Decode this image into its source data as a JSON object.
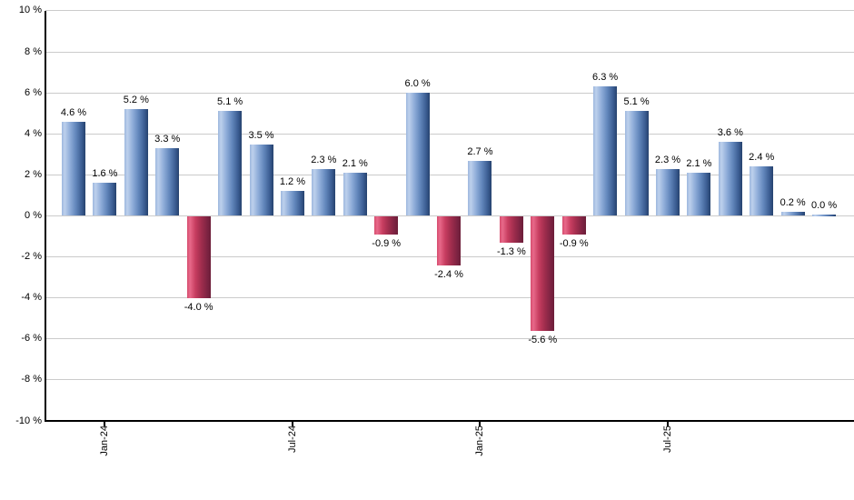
{
  "chart_data": {
    "type": "bar",
    "title": "",
    "xlabel": "",
    "ylabel": "",
    "ylim": [
      -10,
      10
    ],
    "grid": true,
    "y_tick_step": 2,
    "y_tick_labels": [
      "10 %",
      "8 %",
      "6 %",
      "4 %",
      "2 %",
      "0 %",
      "-2 %",
      "-4 %",
      "-6 %",
      "-8 %",
      "-10 %"
    ],
    "y_tick_values": [
      10,
      8,
      6,
      4,
      2,
      0,
      -2,
      -4,
      -6,
      -8,
      -10
    ],
    "x_tick_labels": [
      {
        "bar_index": 1,
        "label": "Jan-24"
      },
      {
        "bar_index": 7,
        "label": "Jul-24"
      },
      {
        "bar_index": 13,
        "label": "Jan-25"
      },
      {
        "bar_index": 19,
        "label": "Jul-25"
      }
    ],
    "values": [
      4.6,
      1.6,
      5.2,
      3.3,
      -4.0,
      5.1,
      3.5,
      1.2,
      2.3,
      2.1,
      -0.9,
      6.0,
      -2.4,
      2.7,
      -1.3,
      -5.6,
      -0.9,
      6.3,
      5.1,
      2.3,
      2.1,
      3.6,
      2.4,
      0.2,
      0.0
    ],
    "bar_labels": [
      "4.6 %",
      "1.6 %",
      "5.2 %",
      "3.3 %",
      "-4.0 %",
      "5.1 %",
      "3.5 %",
      "1.2 %",
      "2.3 %",
      "2.1 %",
      "-0.9 %",
      "6.0 %",
      "-2.4 %",
      "2.7 %",
      "-1.3 %",
      "-5.6 %",
      "-0.9 %",
      "6.3 %",
      "5.1 %",
      "2.3 %",
      "2.1 %",
      "3.6 %",
      "2.4 %",
      "0.2 %",
      "0.0 %"
    ],
    "colors": {
      "positive_base": "#6d8fc5",
      "negative_base": "#c73d60",
      "positive_gradient": [
        "#9db7de",
        "#bdd0ec",
        "#8fadd9",
        "#6186bb",
        "#3a5c91",
        "#26426e"
      ],
      "negative_gradient": [
        "#d64c6e",
        "#e8698a",
        "#c73d60",
        "#a02d4d",
        "#7d2342",
        "#6c1e39"
      ],
      "gradient_stops_pct": [
        0,
        12,
        35,
        60,
        85,
        100
      ],
      "gridline": "#cbcbcb",
      "axis": "#000000",
      "text": "#000000",
      "background": "#ffffff"
    }
  }
}
